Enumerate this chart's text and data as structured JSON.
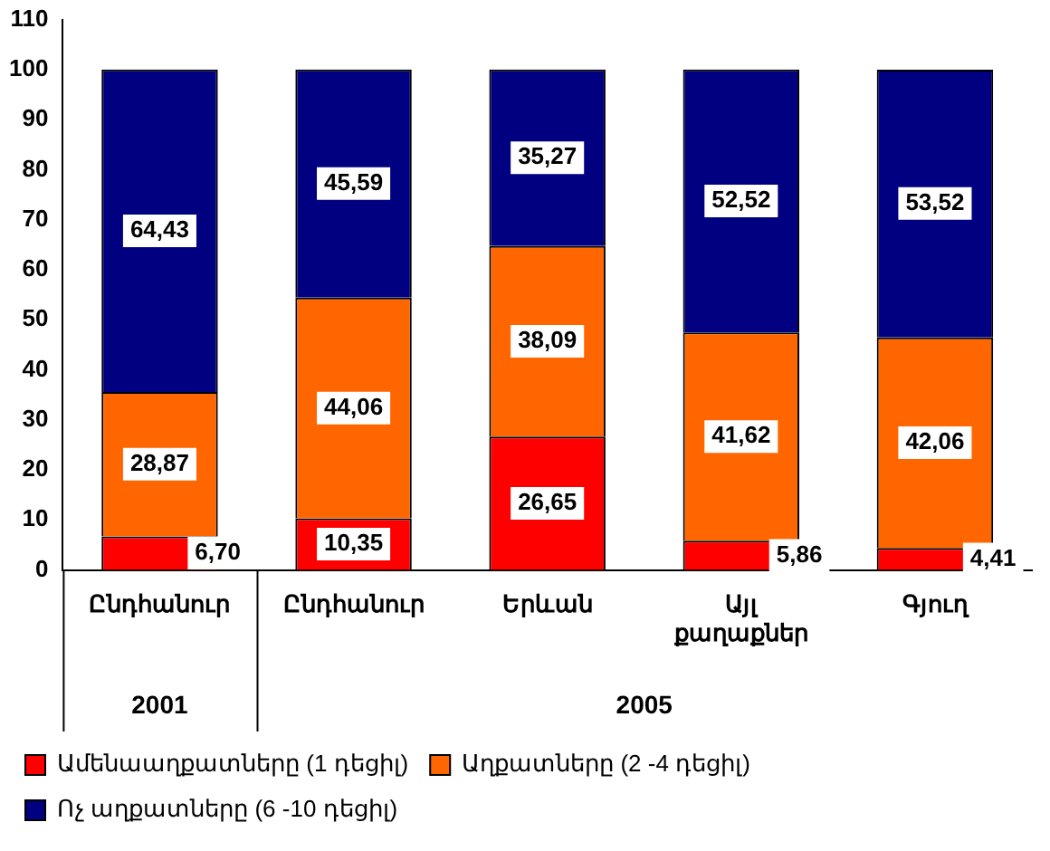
{
  "chart_data": {
    "type": "bar",
    "stacked": true,
    "categories": [
      "Ընդհանուր",
      "Ընդհանուր",
      "Երևան",
      "Այլ քաղաքներ",
      "Գյուղ"
    ],
    "series": [
      {
        "name": "Ամենաաղքատները (1 դեցիլ)",
        "color": "#ff0000",
        "values": [
          6.7,
          10.35,
          26.65,
          5.86,
          4.41
        ],
        "value_labels": [
          "6,70",
          "10,35",
          "26,65",
          "5,86",
          "4,41"
        ]
      },
      {
        "name": "Աղքատները (2 -4 դեցիլ)",
        "color": "#ff6600",
        "values": [
          28.87,
          44.06,
          38.09,
          41.62,
          42.06
        ],
        "value_labels": [
          "28,87",
          "44,06",
          "38,09",
          "41,62",
          "42,06"
        ]
      },
      {
        "name": "Ոչ աղքատները (6 -10 դեցիլ)",
        "color": "#000080",
        "values": [
          64.43,
          45.59,
          35.27,
          52.52,
          53.52
        ],
        "value_labels": [
          "64,43",
          "45,59",
          "35,27",
          "52,52",
          "53,52"
        ]
      }
    ],
    "ylim": [
      0,
      110
    ],
    "yticks": [
      0,
      10,
      20,
      30,
      40,
      50,
      60,
      70,
      80,
      90,
      100,
      110
    ],
    "grid": false,
    "legend": "bottom",
    "annotations": [
      "2001",
      "2005"
    ]
  }
}
